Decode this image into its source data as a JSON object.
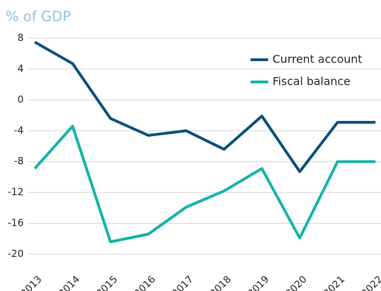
{
  "chart_data": {
    "type": "line",
    "title": "% of GDP",
    "categories": [
      "2013",
      "2014",
      "2015",
      "2016",
      "2017",
      "2018",
      "2019",
      "2020",
      "2021",
      "2022"
    ],
    "series": [
      {
        "name": "Current account",
        "color": "#0b4f7a",
        "values": [
          7.5,
          4.7,
          -2.4,
          -4.6,
          -4.0,
          -6.4,
          -2.1,
          -9.3,
          -2.9,
          -2.9
        ]
      },
      {
        "name": "Fiscal balance",
        "color": "#12b3a8",
        "values": [
          -8.9,
          -3.4,
          -18.4,
          -17.4,
          -13.9,
          -11.8,
          -8.9,
          -17.9,
          -8.0,
          -8.0
        ]
      }
    ],
    "ylim": [
      -20,
      8
    ],
    "yticks": [
      8,
      4,
      0,
      -4,
      -8,
      -12,
      -16,
      -20
    ],
    "grid": true,
    "legend": "upper right"
  }
}
